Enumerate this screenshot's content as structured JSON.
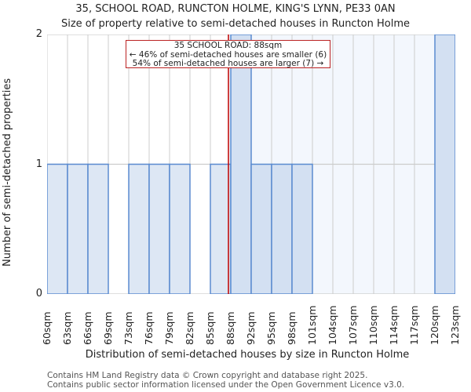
{
  "title_line1": "35, SCHOOL ROAD, RUNCTON HOLME, KING'S LYNN, PE33 0AN",
  "title_line2": "Size of property relative to semi-detached houses in Runcton Holme",
  "annotation": {
    "line1": "35 SCHOOL ROAD: 88sqm",
    "line2": "← 46% of semi-detached houses are smaller (6)",
    "line3": "54% of semi-detached houses are larger (7) →"
  },
  "footer": {
    "line1": "Contains HM Land Registry data © Crown copyright and database right 2025.",
    "line2": "Contains public sector information licensed under the Open Government Licence v3.0."
  },
  "colors": {
    "bar_before": "#dde7f4",
    "bar_after": "#d3e0f2",
    "bar_edge": "#5b8bd0",
    "after_background": "#f3f7fd",
    "grid": "#cccccc",
    "marker": "#c00000"
  },
  "chart_data": {
    "type": "bar",
    "title": "35, SCHOOL ROAD, RUNCTON HOLME, KING'S LYNN, PE33 0AN — Size of property relative to semi-detached houses in Runcton Holme",
    "xlabel": "Distribution of semi-detached houses by size in Runcton Holme",
    "ylabel": "Number of semi-detached properties",
    "ylim": [
      0,
      2
    ],
    "yticks": [
      "0",
      "1",
      "2"
    ],
    "tick_labels": [
      "60sqm",
      "63sqm",
      "66sqm",
      "69sqm",
      "73sqm",
      "76sqm",
      "79sqm",
      "82sqm",
      "85sqm",
      "88sqm",
      "92sqm",
      "95sqm",
      "98sqm",
      "101sqm",
      "104sqm",
      "107sqm",
      "110sqm",
      "114sqm",
      "117sqm",
      "120sqm",
      "123sqm"
    ],
    "categories": [
      "60-63",
      "63-66",
      "66-69",
      "69-73",
      "73-76",
      "76-79",
      "79-82",
      "82-85",
      "85-88",
      "88-92",
      "92-95",
      "95-98",
      "98-101",
      "101-104",
      "104-107",
      "107-110",
      "110-114",
      "114-117",
      "117-120",
      "120-123"
    ],
    "values": [
      1,
      1,
      1,
      0,
      1,
      1,
      1,
      0,
      1,
      2,
      1,
      1,
      1,
      0,
      0,
      0,
      0,
      0,
      0,
      2
    ],
    "marker": {
      "value_sqm": 88,
      "label": "35 SCHOOL ROAD: 88sqm"
    },
    "grid": true,
    "legend": null
  },
  "labels": {
    "xlabel": "Distribution of semi-detached houses by size in Runcton Holme",
    "ylabel": "Number of semi-detached properties"
  }
}
